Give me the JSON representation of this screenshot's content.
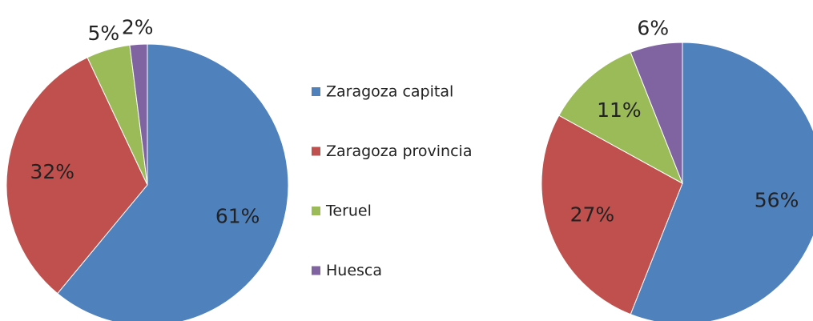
{
  "chart_data": {
    "type": "pie",
    "categories": [
      "Zaragoza capital",
      "Zaragoza provincia",
      "Teruel",
      "Huesca"
    ],
    "colors": [
      "#4f81bd",
      "#c0504d",
      "#9bbb59",
      "#8064a2"
    ],
    "series": [
      {
        "values": [
          61,
          32,
          5,
          2
        ],
        "value_labels": [
          "61%",
          "32%",
          "5%",
          "2%"
        ]
      },
      {
        "values": [
          56,
          27,
          11,
          6
        ],
        "value_labels": [
          "56%",
          "27%",
          "11%",
          "6%"
        ]
      }
    ]
  }
}
